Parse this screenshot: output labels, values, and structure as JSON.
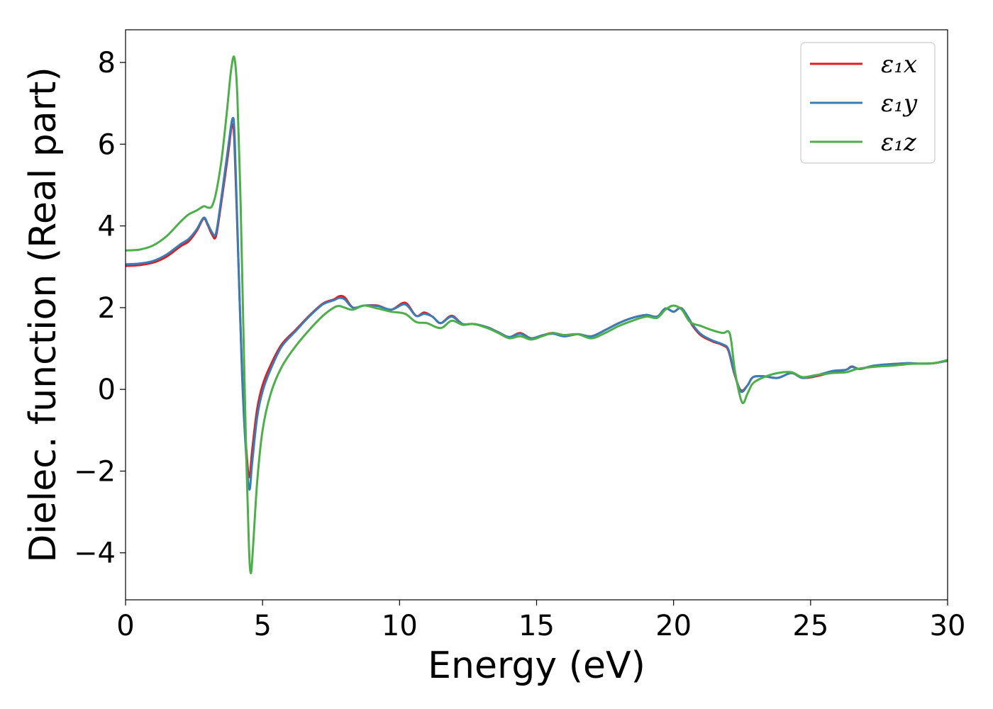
{
  "chart_data": {
    "type": "line",
    "xlabel": "Energy (eV)",
    "ylabel": "Dielec. function (Real part)",
    "xlim": [
      0,
      30
    ],
    "ylim": [
      -5.15,
      8.8
    ],
    "x_ticks": [
      0,
      5,
      10,
      15,
      20,
      25,
      30
    ],
    "x_tick_labels": [
      "0",
      "5",
      "10",
      "15",
      "20",
      "25",
      "30"
    ],
    "y_ticks": [
      -4,
      -2,
      0,
      2,
      4,
      6,
      8
    ],
    "y_tick_labels": [
      "−4",
      "−2",
      "0",
      "2",
      "4",
      "6",
      "8"
    ],
    "grid": false,
    "legend_position": "top-right",
    "series": [
      {
        "name": "ε₁x",
        "color": "#e41a1c",
        "points": [
          [
            0,
            3.02
          ],
          [
            0.5,
            3.04
          ],
          [
            1.0,
            3.1
          ],
          [
            1.5,
            3.25
          ],
          [
            2.0,
            3.5
          ],
          [
            2.3,
            3.62
          ],
          [
            2.6,
            3.88
          ],
          [
            2.85,
            4.18
          ],
          [
            3.0,
            4.02
          ],
          [
            3.15,
            3.8
          ],
          [
            3.3,
            3.75
          ],
          [
            3.5,
            4.6
          ],
          [
            3.75,
            5.8
          ],
          [
            3.88,
            6.45
          ],
          [
            3.97,
            6.1
          ],
          [
            4.1,
            3.5
          ],
          [
            4.25,
            0.5
          ],
          [
            4.4,
            -1.4
          ],
          [
            4.52,
            -2.15
          ],
          [
            4.62,
            -1.5
          ],
          [
            4.8,
            -0.5
          ],
          [
            5.0,
            0.1
          ],
          [
            5.3,
            0.6
          ],
          [
            5.7,
            1.1
          ],
          [
            6.2,
            1.45
          ],
          [
            6.7,
            1.8
          ],
          [
            7.2,
            2.1
          ],
          [
            7.6,
            2.2
          ],
          [
            7.8,
            2.28
          ],
          [
            8.0,
            2.25
          ],
          [
            8.3,
            2.0
          ],
          [
            8.7,
            2.05
          ],
          [
            9.2,
            2.05
          ],
          [
            9.7,
            1.95
          ],
          [
            10.2,
            2.12
          ],
          [
            10.6,
            1.8
          ],
          [
            10.9,
            1.88
          ],
          [
            11.2,
            1.78
          ],
          [
            11.5,
            1.62
          ],
          [
            11.9,
            1.8
          ],
          [
            12.3,
            1.6
          ],
          [
            12.7,
            1.6
          ],
          [
            13.2,
            1.52
          ],
          [
            13.6,
            1.4
          ],
          [
            14.0,
            1.28
          ],
          [
            14.4,
            1.38
          ],
          [
            14.8,
            1.25
          ],
          [
            15.2,
            1.32
          ],
          [
            15.6,
            1.38
          ],
          [
            16.0,
            1.3
          ],
          [
            16.5,
            1.35
          ],
          [
            17.0,
            1.3
          ],
          [
            17.5,
            1.45
          ],
          [
            18.0,
            1.62
          ],
          [
            18.5,
            1.75
          ],
          [
            19.0,
            1.82
          ],
          [
            19.4,
            1.78
          ],
          [
            19.7,
            1.98
          ],
          [
            20.0,
            1.9
          ],
          [
            20.3,
            1.98
          ],
          [
            20.7,
            1.55
          ],
          [
            21.0,
            1.32
          ],
          [
            21.4,
            1.18
          ],
          [
            21.8,
            1.08
          ],
          [
            22.0,
            0.95
          ],
          [
            22.2,
            0.42
          ],
          [
            22.45,
            -0.02
          ],
          [
            22.7,
            0.1
          ],
          [
            22.9,
            0.3
          ],
          [
            23.3,
            0.32
          ],
          [
            23.8,
            0.28
          ],
          [
            24.3,
            0.4
          ],
          [
            24.7,
            0.28
          ],
          [
            25.2,
            0.32
          ],
          [
            25.8,
            0.42
          ],
          [
            26.3,
            0.48
          ],
          [
            26.5,
            0.56
          ],
          [
            26.8,
            0.5
          ],
          [
            27.3,
            0.58
          ],
          [
            28.0,
            0.62
          ],
          [
            28.6,
            0.64
          ],
          [
            29.0,
            0.63
          ],
          [
            29.5,
            0.64
          ],
          [
            30.0,
            0.7
          ]
        ]
      },
      {
        "name": "ε₁y",
        "color": "#377eb8",
        "points": [
          [
            0,
            3.06
          ],
          [
            0.5,
            3.08
          ],
          [
            1.0,
            3.14
          ],
          [
            1.5,
            3.3
          ],
          [
            2.0,
            3.55
          ],
          [
            2.3,
            3.68
          ],
          [
            2.6,
            3.92
          ],
          [
            2.85,
            4.2
          ],
          [
            3.0,
            4.05
          ],
          [
            3.15,
            3.85
          ],
          [
            3.3,
            3.82
          ],
          [
            3.5,
            4.7
          ],
          [
            3.75,
            5.95
          ],
          [
            3.9,
            6.62
          ],
          [
            3.98,
            6.2
          ],
          [
            4.1,
            3.6
          ],
          [
            4.25,
            0.4
          ],
          [
            4.4,
            -1.6
          ],
          [
            4.52,
            -2.45
          ],
          [
            4.62,
            -1.8
          ],
          [
            4.8,
            -0.7
          ],
          [
            5.0,
            -0.05
          ],
          [
            5.3,
            0.5
          ],
          [
            5.7,
            1.05
          ],
          [
            6.2,
            1.42
          ],
          [
            6.7,
            1.78
          ],
          [
            7.2,
            2.08
          ],
          [
            7.6,
            2.18
          ],
          [
            7.8,
            2.24
          ],
          [
            8.0,
            2.2
          ],
          [
            8.3,
            2.0
          ],
          [
            8.7,
            2.05
          ],
          [
            9.2,
            2.04
          ],
          [
            9.7,
            1.95
          ],
          [
            10.2,
            2.08
          ],
          [
            10.6,
            1.8
          ],
          [
            10.9,
            1.85
          ],
          [
            11.2,
            1.78
          ],
          [
            11.5,
            1.62
          ],
          [
            11.9,
            1.78
          ],
          [
            12.3,
            1.6
          ],
          [
            12.7,
            1.6
          ],
          [
            13.2,
            1.52
          ],
          [
            13.6,
            1.4
          ],
          [
            14.0,
            1.28
          ],
          [
            14.4,
            1.36
          ],
          [
            14.8,
            1.25
          ],
          [
            15.2,
            1.32
          ],
          [
            15.6,
            1.36
          ],
          [
            16.0,
            1.3
          ],
          [
            16.5,
            1.35
          ],
          [
            17.0,
            1.3
          ],
          [
            17.5,
            1.45
          ],
          [
            18.0,
            1.62
          ],
          [
            18.5,
            1.75
          ],
          [
            19.0,
            1.82
          ],
          [
            19.4,
            1.78
          ],
          [
            19.7,
            1.98
          ],
          [
            20.0,
            1.9
          ],
          [
            20.3,
            1.98
          ],
          [
            20.7,
            1.58
          ],
          [
            21.0,
            1.35
          ],
          [
            21.4,
            1.2
          ],
          [
            21.8,
            1.1
          ],
          [
            22.0,
            0.98
          ],
          [
            22.2,
            0.45
          ],
          [
            22.45,
            -0.05
          ],
          [
            22.7,
            0.1
          ],
          [
            22.9,
            0.3
          ],
          [
            23.3,
            0.32
          ],
          [
            23.8,
            0.28
          ],
          [
            24.3,
            0.4
          ],
          [
            24.7,
            0.28
          ],
          [
            25.2,
            0.34
          ],
          [
            25.8,
            0.45
          ],
          [
            26.3,
            0.48
          ],
          [
            26.5,
            0.55
          ],
          [
            26.8,
            0.5
          ],
          [
            27.3,
            0.58
          ],
          [
            28.0,
            0.62
          ],
          [
            28.6,
            0.64
          ],
          [
            29.0,
            0.63
          ],
          [
            29.5,
            0.64
          ],
          [
            30.0,
            0.7
          ]
        ]
      },
      {
        "name": "ε₁z",
        "color": "#4daf4a",
        "points": [
          [
            0,
            3.4
          ],
          [
            0.5,
            3.42
          ],
          [
            1.0,
            3.52
          ],
          [
            1.5,
            3.75
          ],
          [
            2.0,
            4.1
          ],
          [
            2.3,
            4.28
          ],
          [
            2.6,
            4.38
          ],
          [
            2.85,
            4.48
          ],
          [
            3.0,
            4.45
          ],
          [
            3.15,
            4.48
          ],
          [
            3.3,
            4.8
          ],
          [
            3.5,
            5.6
          ],
          [
            3.7,
            6.8
          ],
          [
            3.85,
            7.8
          ],
          [
            3.97,
            8.12
          ],
          [
            4.08,
            7.2
          ],
          [
            4.2,
            4.5
          ],
          [
            4.3,
            1.5
          ],
          [
            4.4,
            -1.5
          ],
          [
            4.5,
            -3.8
          ],
          [
            4.57,
            -4.5
          ],
          [
            4.65,
            -3.9
          ],
          [
            4.8,
            -2.3
          ],
          [
            5.0,
            -1.0
          ],
          [
            5.3,
            -0.1
          ],
          [
            5.7,
            0.55
          ],
          [
            6.2,
            1.05
          ],
          [
            6.7,
            1.45
          ],
          [
            7.2,
            1.8
          ],
          [
            7.6,
            2.0
          ],
          [
            7.8,
            2.04
          ],
          [
            8.0,
            2.0
          ],
          [
            8.3,
            1.95
          ],
          [
            8.7,
            2.05
          ],
          [
            9.2,
            1.98
          ],
          [
            9.7,
            1.9
          ],
          [
            10.2,
            1.85
          ],
          [
            10.6,
            1.65
          ],
          [
            11.0,
            1.62
          ],
          [
            11.5,
            1.5
          ],
          [
            11.9,
            1.68
          ],
          [
            12.3,
            1.58
          ],
          [
            12.7,
            1.6
          ],
          [
            13.2,
            1.5
          ],
          [
            13.6,
            1.38
          ],
          [
            14.0,
            1.25
          ],
          [
            14.4,
            1.3
          ],
          [
            14.8,
            1.22
          ],
          [
            15.2,
            1.3
          ],
          [
            15.6,
            1.38
          ],
          [
            16.0,
            1.33
          ],
          [
            16.5,
            1.35
          ],
          [
            17.0,
            1.25
          ],
          [
            17.5,
            1.38
          ],
          [
            18.0,
            1.55
          ],
          [
            18.5,
            1.68
          ],
          [
            19.0,
            1.78
          ],
          [
            19.4,
            1.75
          ],
          [
            19.7,
            1.95
          ],
          [
            20.0,
            2.05
          ],
          [
            20.3,
            1.95
          ],
          [
            20.6,
            1.65
          ],
          [
            21.0,
            1.55
          ],
          [
            21.4,
            1.45
          ],
          [
            21.8,
            1.38
          ],
          [
            22.0,
            1.42
          ],
          [
            22.1,
            1.2
          ],
          [
            22.25,
            0.4
          ],
          [
            22.5,
            -0.32
          ],
          [
            22.7,
            -0.1
          ],
          [
            22.9,
            0.15
          ],
          [
            23.3,
            0.3
          ],
          [
            23.8,
            0.4
          ],
          [
            24.3,
            0.42
          ],
          [
            24.7,
            0.3
          ],
          [
            25.2,
            0.35
          ],
          [
            25.8,
            0.4
          ],
          [
            26.3,
            0.42
          ],
          [
            26.7,
            0.5
          ],
          [
            27.3,
            0.55
          ],
          [
            28.0,
            0.58
          ],
          [
            28.6,
            0.62
          ],
          [
            29.0,
            0.63
          ],
          [
            29.5,
            0.64
          ],
          [
            30.0,
            0.72
          ]
        ]
      }
    ]
  }
}
